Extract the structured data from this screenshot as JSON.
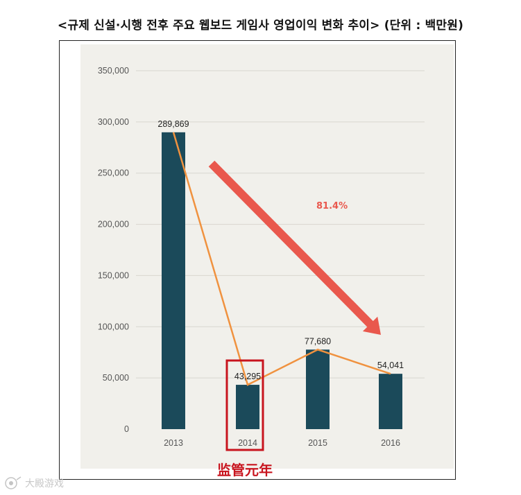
{
  "title": "<규제 신설·시행 전후 주요 웹보드 게임사 영업이익 변화 추이> (단위 : 백만원)",
  "chart_data": {
    "type": "bar",
    "title": "규제 신설·시행 전후 주요 웹보드 게임사 영업이익 변화 추이",
    "unit": "백만원",
    "categories": [
      "2013",
      "2014",
      "2015",
      "2016"
    ],
    "values": [
      289869,
      43295,
      77680,
      54041
    ],
    "value_labels": [
      "289,869",
      "43,295",
      "77,680",
      "54,041"
    ],
    "overlay_line": true,
    "yticks": [
      0,
      50000,
      100000,
      150000,
      200000,
      250000,
      300000,
      350000
    ],
    "ytick_labels": [
      "0",
      "50,000",
      "100,000",
      "150,000",
      "200,000",
      "250,000",
      "300,000",
      "350,000"
    ],
    "ylim": [
      0,
      350000
    ],
    "grid": true,
    "annotations": {
      "decline_percent": "81.4%",
      "highlight_category": "2014",
      "highlight_caption": "监管元年"
    }
  },
  "colors": {
    "bar": "#1b4a5a",
    "line": "#f0923f",
    "arrow": "#e9584d",
    "highlight": "#c8141e",
    "plot_bg": "#f1f0eb",
    "grid": "#d8d6cf"
  },
  "watermark": {
    "text": "大殿游戏",
    "icon": "watermark-logo-icon"
  }
}
